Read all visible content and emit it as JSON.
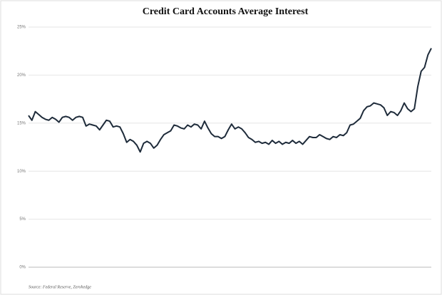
{
  "chart_data": {
    "type": "line",
    "title": "Credit Card Accounts Average Interest",
    "source": "Source: Federal Reserve, Zerohedge",
    "categories": [
      null,
      null,
      null,
      null,
      null,
      null,
      null,
      null,
      null,
      null,
      null,
      null,
      null,
      null,
      null,
      null,
      null,
      null,
      null,
      null,
      null,
      null,
      null,
      null,
      null,
      null,
      null,
      null,
      null,
      null,
      null,
      null,
      null,
      null,
      null,
      null,
      null,
      null,
      null,
      null,
      null,
      null,
      null,
      null,
      null,
      null,
      null,
      null,
      null,
      null,
      null,
      null,
      null,
      null,
      null,
      null,
      null,
      null,
      null,
      null,
      null,
      null,
      null,
      null,
      null,
      null,
      null,
      null,
      null,
      null,
      null,
      null,
      null,
      null,
      null,
      null,
      null,
      null,
      null,
      null,
      null,
      null,
      null,
      null,
      null,
      null,
      null,
      null,
      null,
      null,
      null,
      null,
      null,
      null,
      null,
      null,
      null,
      null,
      null,
      null,
      null,
      null,
      null,
      null,
      null,
      null,
      null,
      null,
      null,
      null,
      null,
      null,
      null,
      null,
      null,
      null,
      null,
      null,
      null,
      null
    ],
    "values": [
      15.8,
      15.3,
      16.2,
      15.9,
      15.6,
      15.4,
      15.3,
      15.6,
      15.4,
      15.1,
      15.6,
      15.7,
      15.6,
      15.3,
      15.6,
      15.7,
      15.6,
      14.7,
      14.9,
      14.8,
      14.7,
      14.3,
      14.8,
      15.3,
      15.2,
      14.6,
      14.7,
      14.6,
      13.9,
      13.0,
      13.3,
      13.1,
      12.7,
      12.0,
      12.9,
      13.1,
      12.9,
      12.4,
      12.7,
      13.3,
      13.8,
      14.0,
      14.2,
      14.8,
      14.7,
      14.5,
      14.4,
      14.8,
      14.6,
      14.9,
      14.8,
      14.4,
      15.2,
      14.5,
      13.9,
      13.6,
      13.6,
      13.4,
      13.6,
      14.3,
      14.9,
      14.4,
      14.6,
      14.4,
      14.0,
      13.5,
      13.3,
      13.0,
      13.1,
      12.9,
      13.0,
      12.8,
      13.2,
      12.9,
      13.1,
      12.8,
      13.0,
      12.9,
      13.2,
      12.9,
      13.1,
      12.8,
      13.2,
      13.6,
      13.5,
      13.5,
      13.8,
      13.6,
      13.4,
      13.3,
      13.6,
      13.5,
      13.8,
      13.7,
      14.0,
      14.8,
      14.9,
      15.2,
      15.5,
      16.3,
      16.7,
      16.8,
      17.1,
      17.0,
      16.9,
      16.6,
      15.8,
      16.2,
      16.1,
      15.8,
      16.3,
      17.1,
      16.5,
      16.2,
      16.5,
      18.8,
      20.4,
      20.8,
      22.1,
      22.8
    ],
    "color": "#1e2b3a",
    "ylim": [
      0,
      25
    ],
    "yticks": [
      {
        "value": 0,
        "label": "0%"
      },
      {
        "value": 5,
        "label": "5%"
      },
      {
        "value": 10,
        "label": "10%"
      },
      {
        "value": 15,
        "label": "15%"
      },
      {
        "value": 20,
        "label": "20%"
      },
      {
        "value": 25,
        "label": "25%"
      }
    ],
    "grid": true
  }
}
